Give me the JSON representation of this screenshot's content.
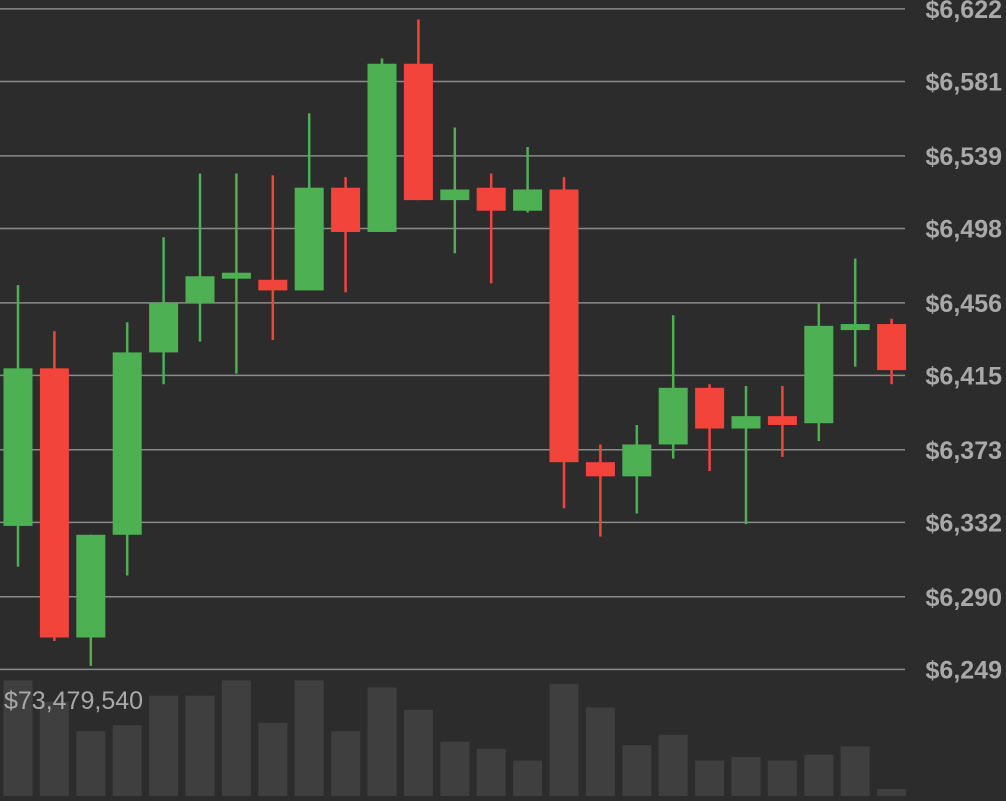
{
  "chart_data": {
    "type": "candlestick",
    "price_axis": {
      "ticks": [
        "$6,622",
        "$6,581",
        "$6,539",
        "$6,498",
        "$6,456",
        "$6,415",
        "$6,373",
        "$6,332",
        "$6,290",
        "$6,249"
      ],
      "tick_values": [
        6622,
        6581,
        6539,
        6498,
        6456,
        6415,
        6373,
        6332,
        6290,
        6249
      ],
      "ylim": [
        6243,
        6627
      ],
      "side": "right",
      "grid": true
    },
    "volume_label": "$73,479,540",
    "candles": [
      {
        "open": 6330,
        "high": 6466,
        "low": 6307,
        "close": 6419,
        "volume": 0.98
      },
      {
        "open": 6419,
        "high": 6440,
        "low": 6265,
        "close": 6267,
        "volume": 0.8
      },
      {
        "open": 6267,
        "high": 6325,
        "low": 6251,
        "close": 6325,
        "volume": 0.55
      },
      {
        "open": 6325,
        "high": 6445,
        "low": 6302,
        "close": 6428,
        "volume": 0.6
      },
      {
        "open": 6428,
        "high": 6493,
        "low": 6410,
        "close": 6456,
        "volume": 0.85
      },
      {
        "open": 6456,
        "high": 6529,
        "low": 6434,
        "close": 6471,
        "volume": 0.85
      },
      {
        "open": 6471,
        "high": 6529,
        "low": 6416,
        "close": 6473,
        "volume": 0.98
      },
      {
        "open": 6469,
        "high": 6528,
        "low": 6435,
        "close": 6463,
        "volume": 0.62
      },
      {
        "open": 6463,
        "high": 6563,
        "low": 6463,
        "close": 6521,
        "volume": 0.98
      },
      {
        "open": 6521,
        "high": 6527,
        "low": 6462,
        "close": 6496,
        "volume": 0.55
      },
      {
        "open": 6496,
        "high": 6594,
        "low": 6496,
        "close": 6591,
        "volume": 0.92
      },
      {
        "open": 6591,
        "high": 6616,
        "low": 6514,
        "close": 6514,
        "volume": 0.73
      },
      {
        "open": 6514,
        "high": 6555,
        "low": 6484,
        "close": 6520,
        "volume": 0.46
      },
      {
        "open": 6521,
        "high": 6529,
        "low": 6467,
        "close": 6508,
        "volume": 0.4
      },
      {
        "open": 6508,
        "high": 6544,
        "low": 6507,
        "close": 6520,
        "volume": 0.3
      },
      {
        "open": 6520,
        "high": 6527,
        "low": 6340,
        "close": 6366,
        "volume": 0.95
      },
      {
        "open": 6366,
        "high": 6376,
        "low": 6324,
        "close": 6358,
        "volume": 0.75
      },
      {
        "open": 6358,
        "high": 6387,
        "low": 6337,
        "close": 6376,
        "volume": 0.43
      },
      {
        "open": 6376,
        "high": 6449,
        "low": 6368,
        "close": 6408,
        "volume": 0.52
      },
      {
        "open": 6408,
        "high": 6410,
        "low": 6361,
        "close": 6385,
        "volume": 0.3
      },
      {
        "open": 6385,
        "high": 6409,
        "low": 6331,
        "close": 6392,
        "volume": 0.33
      },
      {
        "open": 6392,
        "high": 6409,
        "low": 6369,
        "close": 6387,
        "volume": 0.3
      },
      {
        "open": 6388,
        "high": 6456,
        "low": 6378,
        "close": 6443,
        "volume": 0.35
      },
      {
        "open": 6441,
        "high": 6481,
        "low": 6420,
        "close": 6444,
        "volume": 0.42
      },
      {
        "open": 6444,
        "high": 6447,
        "low": 6410,
        "close": 6418,
        "volume": 0.06
      }
    ],
    "colors": {
      "background": "#2c2c2c",
      "up": "#4db052",
      "down": "#f3443b",
      "grid": "#8a8a8a",
      "axis_text": "#a9a9a9",
      "volume": "#3f3f3f"
    }
  }
}
